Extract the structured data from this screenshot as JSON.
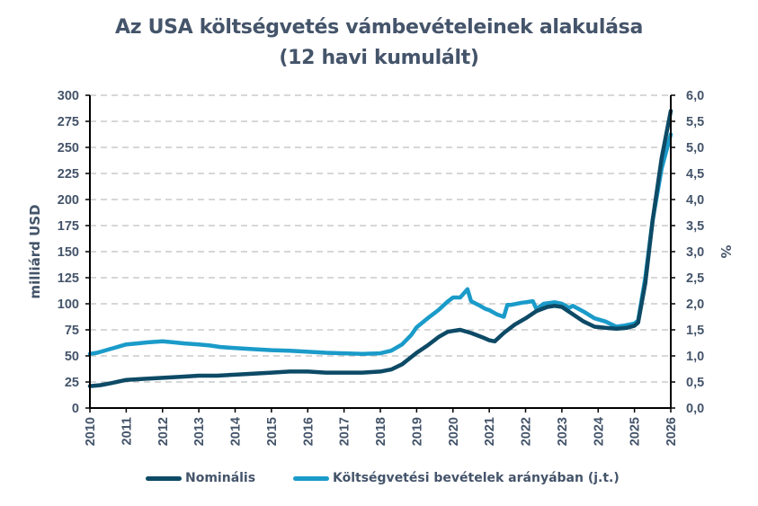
{
  "title_line1": "Az USA költségvetés vámbevételeinek alakulása",
  "title_line2": "(12 havi kumulált)",
  "chart_data": {
    "type": "line",
    "title": "Az USA költségvetés vámbevételeinek alakulása (12 havi kumulált)",
    "ylabel": "milliárd USD",
    "y2label": "%",
    "ylim": [
      0,
      300
    ],
    "y2lim": [
      0,
      6
    ],
    "xlim": [
      2010,
      2026
    ],
    "grid": true,
    "legend_position": "bottom",
    "y_ticks": [
      "0",
      "25",
      "50",
      "75",
      "100",
      "125",
      "150",
      "175",
      "200",
      "225",
      "250",
      "275",
      "300"
    ],
    "y2_ticks": [
      "0,0",
      "0,5",
      "1,0",
      "1,5",
      "2,0",
      "2,5",
      "3,0",
      "3,5",
      "4,0",
      "4,5",
      "5,0",
      "5,5",
      "6,0"
    ],
    "x_ticks": [
      "2010",
      "2011",
      "2012",
      "2013",
      "2014",
      "2015",
      "2016",
      "2017",
      "2018",
      "2019",
      "2020",
      "2021",
      "2022",
      "2023",
      "2024",
      "2025",
      "2026"
    ],
    "colors": {
      "nominal": "#0d4a66",
      "share": "#1a9bc9",
      "grid": "#bfbfbf",
      "text": "#44546a"
    },
    "series": [
      {
        "name": "Nominális",
        "axis": "left",
        "x": [
          2010.0,
          2010.3,
          2010.6,
          2011.0,
          2011.5,
          2012.0,
          2012.5,
          2013.0,
          2013.5,
          2014.0,
          2014.5,
          2015.0,
          2015.5,
          2016.0,
          2016.5,
          2017.0,
          2017.5,
          2018.0,
          2018.3,
          2018.6,
          2019.0,
          2019.3,
          2019.6,
          2019.85,
          2020.0,
          2020.2,
          2020.5,
          2020.8,
          2021.0,
          2021.15,
          2021.4,
          2021.7,
          2022.0,
          2022.3,
          2022.6,
          2022.8,
          2023.0,
          2023.3,
          2023.6,
          2023.9,
          2024.2,
          2024.5,
          2024.8,
          2025.0,
          2025.1,
          2025.3,
          2025.5,
          2025.75,
          2026.0
        ],
        "values": [
          21,
          22,
          24,
          27,
          28,
          29,
          30,
          31,
          31,
          32,
          33,
          34,
          35,
          35,
          34,
          34,
          34,
          35,
          37,
          42,
          53,
          60,
          68,
          73,
          74,
          75,
          72,
          68,
          65,
          64,
          72,
          80,
          86,
          93,
          97,
          98,
          97,
          90,
          83,
          78,
          77,
          76,
          77,
          79,
          82,
          120,
          180,
          240,
          285
        ]
      },
      {
        "name": "Költségvetési bevételek arányában (j.t.)",
        "axis": "right",
        "x": [
          2010.0,
          2010.2,
          2010.5,
          2010.8,
          2011.0,
          2011.3,
          2011.6,
          2012.0,
          2012.3,
          2012.6,
          2013.0,
          2013.3,
          2013.6,
          2014.0,
          2014.5,
          2015.0,
          2015.5,
          2016.0,
          2016.5,
          2017.0,
          2017.5,
          2018.0,
          2018.3,
          2018.6,
          2018.85,
          2019.0,
          2019.3,
          2019.6,
          2019.85,
          2020.0,
          2020.2,
          2020.3,
          2020.4,
          2020.5,
          2020.7,
          2020.9,
          2021.0,
          2021.2,
          2021.4,
          2021.5,
          2021.6,
          2021.9,
          2022.0,
          2022.2,
          2022.3,
          2022.5,
          2022.8,
          2023.0,
          2023.2,
          2023.3,
          2023.6,
          2023.9,
          2024.2,
          2024.5,
          2024.7,
          2025.0,
          2025.1,
          2025.3,
          2025.5,
          2025.75,
          2026.0
        ],
        "values": [
          1.04,
          1.06,
          1.12,
          1.18,
          1.22,
          1.24,
          1.26,
          1.28,
          1.26,
          1.24,
          1.22,
          1.2,
          1.17,
          1.15,
          1.13,
          1.11,
          1.1,
          1.08,
          1.06,
          1.05,
          1.04,
          1.05,
          1.1,
          1.22,
          1.4,
          1.55,
          1.72,
          1.88,
          2.04,
          2.12,
          2.12,
          2.2,
          2.28,
          2.05,
          1.98,
          1.9,
          1.88,
          1.8,
          1.75,
          1.98,
          1.98,
          2.02,
          2.03,
          2.05,
          1.9,
          2.0,
          2.03,
          2.0,
          1.92,
          1.96,
          1.85,
          1.72,
          1.66,
          1.56,
          1.58,
          1.62,
          1.68,
          2.5,
          3.6,
          4.6,
          5.25
        ]
      }
    ]
  }
}
